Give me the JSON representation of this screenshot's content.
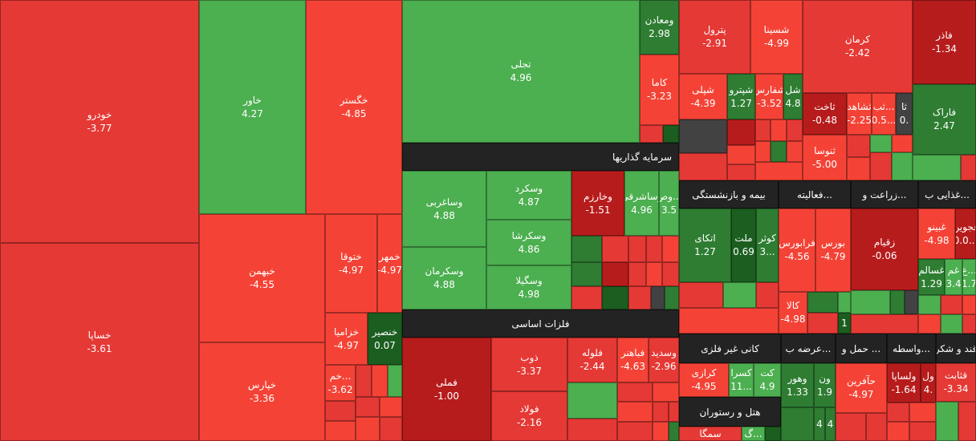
{
  "colors": {
    "dark_red": "#b71c1c",
    "red": "#e53935",
    "bright_red": "#f44336",
    "green": "#4caf50",
    "dark_green": "#2e7d32",
    "deep_green": "#1b5e20",
    "neutral": "#424242",
    "header_bg": "#232323"
  },
  "sectors": [
    {
      "label": "سرمایه گذاریها"
    },
    {
      "label": "فلزات اساسی"
    },
    {
      "label": "بیمه و بازنشستگی"
    },
    {
      "label": "فعالیته..."
    },
    {
      "label": "زراعت و..."
    },
    {
      "label": "غذایی ب..."
    },
    {
      "label": "کانی غیر فلزی"
    },
    {
      "label": "عرضه ب..."
    },
    {
      "label": "حمل و ..."
    },
    {
      "label": "واسطه..."
    },
    {
      "label": "قند و شکر"
    },
    {
      "label": "هتل و رستوران"
    }
  ],
  "tiles": [
    {
      "name": "خودرو",
      "value": "-3.77",
      "color": "red"
    },
    {
      "name": "خساپا",
      "value": "-3.61",
      "color": "red"
    },
    {
      "name": "خاور",
      "value": "4.27",
      "color": "green"
    },
    {
      "name": "خبهمن",
      "value": "-4.55",
      "color": "bright_red"
    },
    {
      "name": "خپارس",
      "value": "-3.36",
      "color": "bright_red"
    },
    {
      "name": "خگستر",
      "value": "-4.85",
      "color": "bright_red"
    },
    {
      "name": "ختوقا",
      "value": "-4.97",
      "color": "bright_red"
    },
    {
      "name": "خمهر",
      "value": "-4.97",
      "color": "bright_red"
    },
    {
      "name": "خزامیا",
      "value": "-4.97",
      "color": "bright_red"
    },
    {
      "name": "خنصیر",
      "value": "0.07",
      "color": "deep_green"
    },
    {
      "name": "خم...",
      "value": "-3.62",
      "color": "bright_red"
    },
    {
      "name": "تجلی",
      "value": "4.96",
      "color": "green"
    },
    {
      "name": "ومعادن",
      "value": "2.98",
      "color": "dark_green"
    },
    {
      "name": "کاما",
      "value": "-3.23",
      "color": "bright_red"
    },
    {
      "name": "وساغربی",
      "value": "4.88",
      "color": "green"
    },
    {
      "name": "وسکرمان",
      "value": "4.88",
      "color": "green"
    },
    {
      "name": "وسکرد",
      "value": "4.87",
      "color": "green"
    },
    {
      "name": "وسکرشا",
      "value": "4.86",
      "color": "green"
    },
    {
      "name": "وسگیلا",
      "value": "4.98",
      "color": "green"
    },
    {
      "name": "وخارزم",
      "value": "-1.51",
      "color": "dark_red"
    },
    {
      "name": "وساشرقی",
      "value": "4.96",
      "color": "green"
    },
    {
      "name": "وص...",
      "value": "3.5",
      "color": "green"
    },
    {
      "name": "فملی",
      "value": "-1.00",
      "color": "dark_red"
    },
    {
      "name": "ذوب",
      "value": "-3.37",
      "color": "red"
    },
    {
      "name": "فولاد",
      "value": "-2.16",
      "color": "red"
    },
    {
      "name": "فلوله",
      "value": "-2.44",
      "color": "red"
    },
    {
      "name": "فباهنر",
      "value": "-4.63",
      "color": "bright_red"
    },
    {
      "name": "وسدید",
      "value": "-2.96",
      "color": "red"
    },
    {
      "name": "پترول",
      "value": "-2.91",
      "color": "red"
    },
    {
      "name": "شسینا",
      "value": "-4.99",
      "color": "bright_red"
    },
    {
      "name": "شپلی",
      "value": "-4.39",
      "color": "bright_red"
    },
    {
      "name": "شپترو",
      "value": "1.27",
      "color": "dark_green"
    },
    {
      "name": "شفارس",
      "value": "-3.52",
      "color": "bright_red"
    },
    {
      "name": "شل",
      "value": "4.8",
      "color": "dark_green"
    },
    {
      "name": "کرمان",
      "value": "-2.42",
      "color": "red"
    },
    {
      "name": "ثاخت",
      "value": "-0.48",
      "color": "dark_red"
    },
    {
      "name": "ثشاهد",
      "value": "-2.25",
      "color": "bright_red"
    },
    {
      "name": "ثب...",
      "value": "0.5...",
      "color": "bright_red"
    },
    {
      "name": "ثا",
      "value": "0.",
      "color": "neutral"
    },
    {
      "name": "ثنوسا",
      "value": "-5.00",
      "color": "bright_red"
    },
    {
      "name": "فاذر",
      "value": "-1.34",
      "color": "dark_red"
    },
    {
      "name": "فاراک",
      "value": "2.47",
      "color": "dark_green"
    },
    {
      "name": "اتکای",
      "value": "1.27",
      "color": "dark_green"
    },
    {
      "name": "ملت",
      "value": "0.69",
      "color": "deep_green"
    },
    {
      "name": "کوثر",
      "value": "3...",
      "color": "dark_green"
    },
    {
      "name": "فرابورس",
      "value": "-4.56",
      "color": "bright_red"
    },
    {
      "name": "بورس",
      "value": "-4.79",
      "color": "bright_red"
    },
    {
      "name": "کالا",
      "value": "-4.98",
      "color": "bright_red"
    },
    {
      "name": "زقیام",
      "value": "-0.06",
      "color": "dark_red"
    },
    {
      "name": "غبینو",
      "value": "-4.98",
      "color": "bright_red"
    },
    {
      "name": "غجوین",
      "value": "0.0...",
      "color": "dark_red"
    },
    {
      "name": "غسالم",
      "value": "1.29",
      "color": "dark_green"
    },
    {
      "name": "غم",
      "value": "3.4",
      "color": "green"
    },
    {
      "name": "غ...",
      "value": "1.7",
      "color": "green"
    },
    {
      "name": "کرازی",
      "value": "-4.95",
      "color": "bright_red"
    },
    {
      "name": "کسرا",
      "value": "11...",
      "color": "green"
    },
    {
      "name": "کت",
      "value": "4.9",
      "color": "green"
    },
    {
      "name": "وهور",
      "value": "1.33",
      "color": "dark_green"
    },
    {
      "name": "ون",
      "value": "1.9",
      "color": "dark_green"
    },
    {
      "name": "حآفرین",
      "value": "-4.97",
      "color": "bright_red"
    },
    {
      "name": "ولساپا",
      "value": "-1.64",
      "color": "dark_red"
    },
    {
      "name": "ول",
      "value": "4.",
      "color": "dark_red"
    },
    {
      "name": "قثابت",
      "value": "-3.34",
      "color": "red"
    },
    {
      "name": "سمگا",
      "value": "",
      "color": "red"
    },
    {
      "name": "گ...",
      "value": "",
      "color": "green"
    },
    {
      "name": "",
      "value": "1",
      "color": "deep_green"
    },
    {
      "name": "",
      "value": "4",
      "color": "dark_green"
    },
    {
      "name": "",
      "value": "4",
      "color": "dark_green"
    }
  ]
}
